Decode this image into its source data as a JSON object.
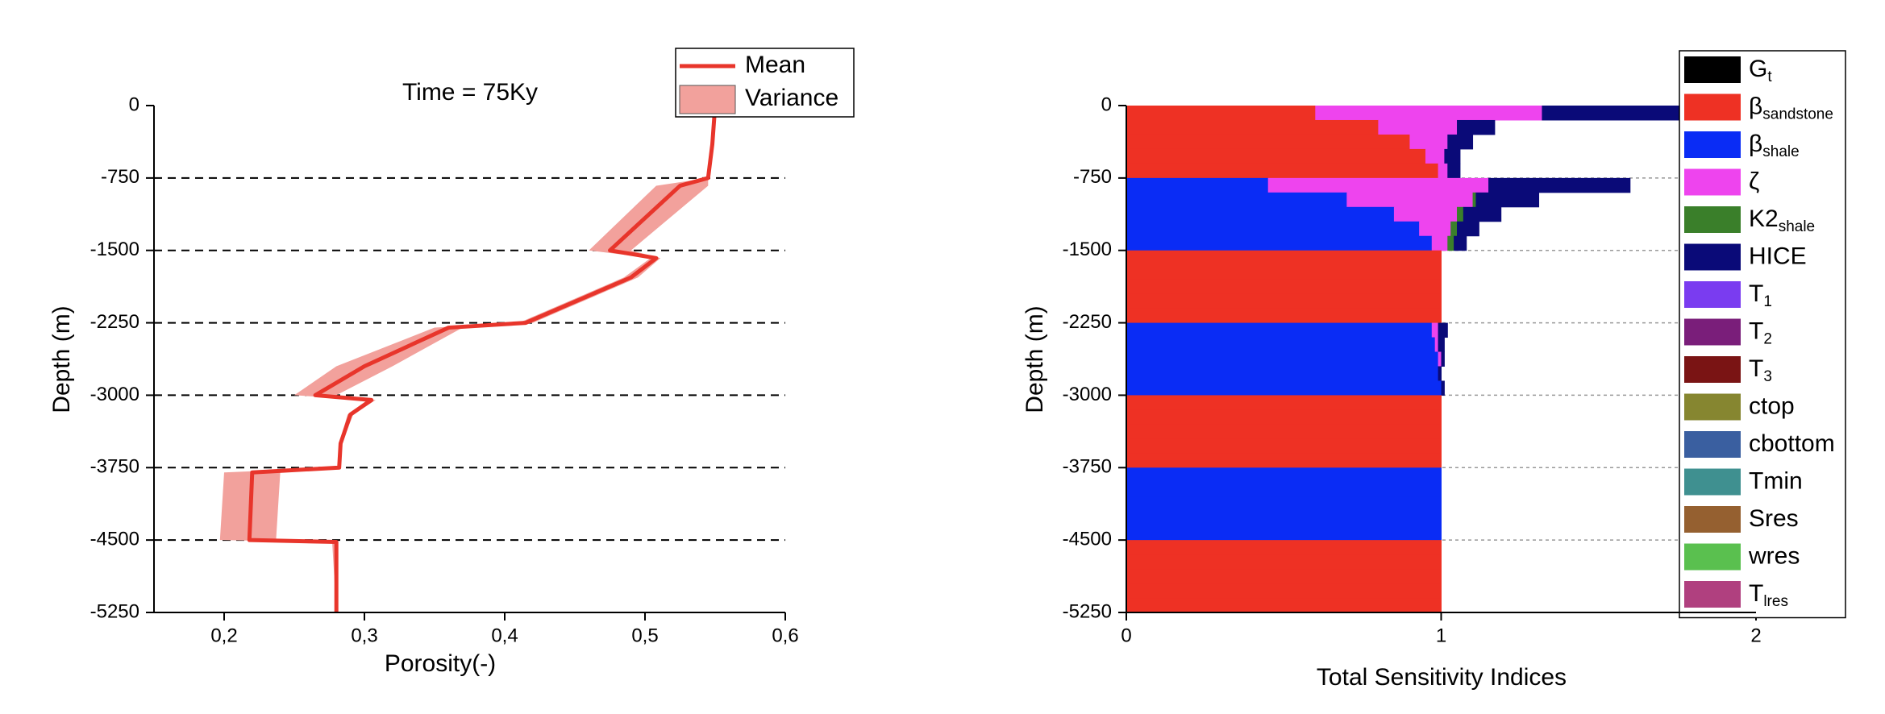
{
  "chart_data": [
    {
      "type": "line",
      "title": "Time = 75Ky",
      "xlabel": "Porosity(-)",
      "ylabel": "Depth (m)",
      "xlim": [
        0.15,
        0.6
      ],
      "xticks": [
        {
          "value": 0.2,
          "label": "0,2"
        },
        {
          "value": 0.3,
          "label": "0,3"
        },
        {
          "value": 0.4,
          "label": "0,4"
        },
        {
          "value": 0.5,
          "label": "0,5"
        },
        {
          "value": 0.6,
          "label": "0,6"
        }
      ],
      "ylim": [
        -5250,
        0
      ],
      "yticks": [
        0,
        -750,
        -1500,
        -2250,
        -3000,
        -3750,
        -4500,
        -5250
      ],
      "grid": true,
      "y": [
        0,
        -400,
        -750,
        -830,
        -1500,
        -1580,
        -1780,
        -2000,
        -2250,
        -2300,
        -2700,
        -3000,
        -3050,
        -3200,
        -3500,
        -3750,
        -3800,
        -4500,
        -4520,
        -5250
      ],
      "series": [
        {
          "name": "Mean",
          "color": "#e8352b",
          "values": [
            0.55,
            0.548,
            0.545,
            0.525,
            0.475,
            0.508,
            0.49,
            0.455,
            0.415,
            0.36,
            0.3,
            0.265,
            0.305,
            0.29,
            0.283,
            0.282,
            0.22,
            0.218,
            0.28,
            0.28
          ]
        },
        {
          "name": "Variance",
          "color": "#f2a19c",
          "lower": [
            0.55,
            0.548,
            0.545,
            0.508,
            0.46,
            0.504,
            0.485,
            0.45,
            0.41,
            0.35,
            0.28,
            0.25,
            0.302,
            0.288,
            0.282,
            0.281,
            0.2,
            0.197,
            0.277,
            0.28
          ],
          "upper": [
            0.55,
            0.548,
            0.545,
            0.545,
            0.49,
            0.511,
            0.495,
            0.46,
            0.42,
            0.37,
            0.32,
            0.28,
            0.308,
            0.292,
            0.284,
            0.283,
            0.24,
            0.237,
            0.281,
            0.28
          ]
        }
      ]
    },
    {
      "type": "stacked_barh",
      "xlabel": "Total Sensitivity Indices",
      "ylabel": "Depth (m)",
      "xlim": [
        0,
        2
      ],
      "xticks": [
        0,
        1,
        2
      ],
      "ylim": [
        -5250,
        0
      ],
      "yticks": [
        0,
        -750,
        -1500,
        -2250,
        -3000,
        -3750,
        -4500,
        -5250
      ],
      "grid": true,
      "y": [
        -75,
        -225,
        -375,
        -525,
        -675,
        -825,
        -975,
        -1125,
        -1275,
        -1425,
        -1575,
        -1725,
        -1875,
        -2025,
        -2175,
        -2325,
        -2475,
        -2625,
        -2775,
        -2925,
        -3075,
        -3225,
        -3375,
        -3525,
        -3675,
        -3825,
        -3975,
        -4125,
        -4275,
        -4425,
        -4575,
        -4725,
        -4875,
        -5025,
        -5175
      ],
      "series": [
        {
          "name": "G",
          "subscript": "t",
          "color": "#000000"
        },
        {
          "name": "β",
          "subscript": "sandstone",
          "color": "#ee3124",
          "values": [
            0.6,
            0.8,
            0.9,
            0.95,
            0.99,
            0,
            0,
            0,
            0,
            0,
            1,
            1,
            1,
            1,
            1,
            0,
            0,
            0,
            0,
            0,
            1,
            1,
            1,
            1,
            1,
            0,
            0,
            0,
            0,
            0,
            1,
            1,
            1,
            1,
            1
          ]
        },
        {
          "name": "β",
          "subscript": "shale",
          "color": "#0a2cf5",
          "values": [
            0,
            0,
            0,
            0,
            0,
            0.45,
            0.7,
            0.85,
            0.93,
            0.97,
            0,
            0,
            0,
            0,
            0,
            0.97,
            0.98,
            0.99,
            0.99,
            1,
            0,
            0,
            0,
            0,
            0,
            1,
            1,
            1,
            1,
            1,
            0,
            0,
            0,
            0,
            0
          ]
        },
        {
          "name": "ζ",
          "color": "#ee44ee",
          "values": [
            0.72,
            0.25,
            0.12,
            0.06,
            0.03,
            0.7,
            0.4,
            0.2,
            0.1,
            0.05,
            0,
            0,
            0,
            0,
            0,
            0.02,
            0.01,
            0.01,
            0,
            0,
            0,
            0,
            0,
            0,
            0,
            0,
            0,
            0,
            0,
            0,
            0,
            0,
            0,
            0,
            0
          ]
        },
        {
          "name": "K2",
          "subscript": "shale",
          "color": "#3a7f2a",
          "values": [
            0,
            0,
            0,
            0,
            0,
            0,
            0.01,
            0.02,
            0.02,
            0.02,
            0,
            0,
            0,
            0,
            0,
            0,
            0,
            0,
            0,
            0,
            0,
            0,
            0,
            0,
            0,
            0,
            0,
            0,
            0,
            0,
            0,
            0,
            0,
            0,
            0
          ]
        },
        {
          "name": "HICE",
          "color": "#0a0a78",
          "values": [
            0.45,
            0.12,
            0.08,
            0.05,
            0.04,
            0.45,
            0.2,
            0.12,
            0.07,
            0.04,
            0,
            0,
            0,
            0,
            0,
            0.03,
            0.02,
            0.01,
            0.01,
            0.01,
            0,
            0,
            0,
            0,
            0,
            0,
            0,
            0,
            0,
            0,
            0,
            0,
            0,
            0,
            0
          ]
        },
        {
          "name": "T",
          "subscript": "1",
          "color": "#7a3cf0"
        },
        {
          "name": "T",
          "subscript": "2",
          "color": "#7a1e7a"
        },
        {
          "name": "T",
          "subscript": "3",
          "color": "#7a1414"
        },
        {
          "name": "ctop",
          "color": "#868630"
        },
        {
          "name": "cbottom",
          "color": "#3a5fa0"
        },
        {
          "name": "Tmin",
          "color": "#3f9090"
        },
        {
          "name": "Sres",
          "color": "#956030"
        },
        {
          "name": "wres",
          "color": "#5ac04f"
        },
        {
          "name": "T",
          "subscript": "lres",
          "color": "#b0407f"
        }
      ]
    }
  ]
}
